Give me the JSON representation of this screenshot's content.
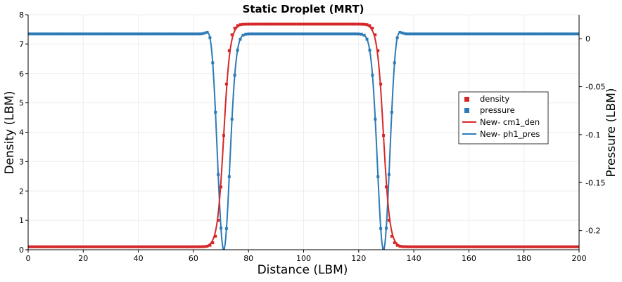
{
  "chart_data": {
    "type": "line",
    "title": "Static Droplet (MRT)",
    "xlabel": "Distance (LBM)",
    "ylabel_left": "Density (LBM)",
    "ylabel_right": "Pressure (LBM)",
    "xlim": [
      0,
      200
    ],
    "ylim_left": [
      0,
      8
    ],
    "ylim_right": [
      -0.22,
      0.025
    ],
    "x_ticks": [
      "0",
      "20",
      "40",
      "60",
      "80",
      "100",
      "120",
      "140",
      "160",
      "180",
      "200"
    ],
    "y_ticks_left": [
      "0",
      "1",
      "2",
      "3",
      "4",
      "5",
      "6",
      "7",
      "8"
    ],
    "y_ticks_right": [
      "0",
      "-0.05",
      "-0.1",
      "-0.15",
      "-0.2"
    ],
    "grid": true,
    "legend_position": "right",
    "legend": [
      "density",
      "pressure",
      "New- cm1_den",
      "New- ph1_pres"
    ],
    "colors": {
      "density": "#d62728",
      "pressure": "#2c7bb6"
    },
    "profile": {
      "density_low": 0.1,
      "density_high": 7.68,
      "interface_left": 71,
      "interface_right": 129,
      "pressure_outside": 0.005,
      "pressure_inside": 0.005,
      "pressure_peak": 0.019,
      "pressure_min": -0.22
    },
    "series": [
      {
        "name": "density",
        "kind": "markers",
        "axis": "left"
      },
      {
        "name": "pressure",
        "kind": "markers",
        "axis": "right"
      },
      {
        "name": "New- cm1_den",
        "kind": "line",
        "axis": "left"
      },
      {
        "name": "New- ph1_pres",
        "kind": "line",
        "axis": "right"
      }
    ]
  }
}
